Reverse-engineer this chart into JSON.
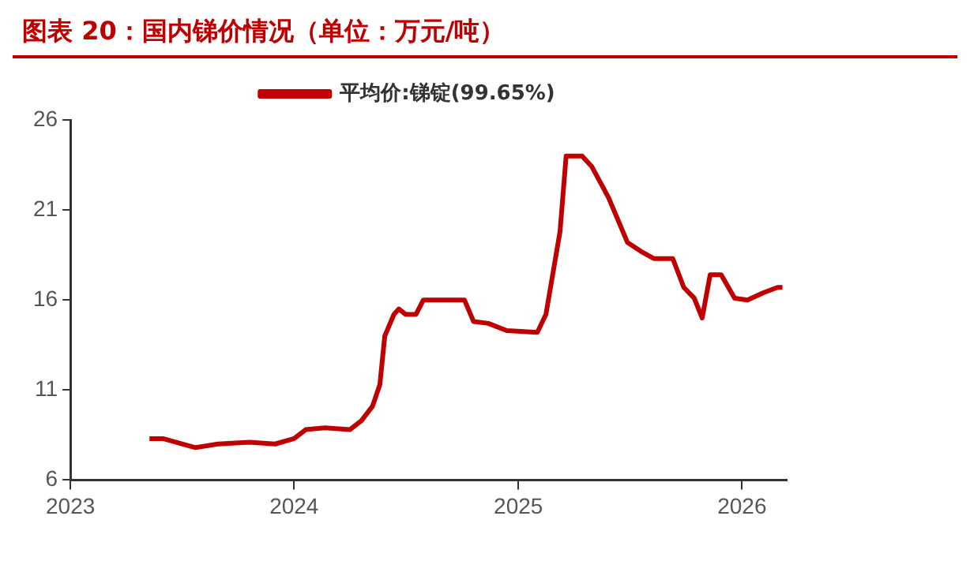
{
  "chart_data": {
    "type": "line",
    "title": "图表 20：国内锑价情况（单位：万元/吨）",
    "x": [
      "2023-05-10",
      "2023-06-01",
      "2023-07-24",
      "2023-08-30",
      "2023-10-20",
      "2023-12-01",
      "2024-01-01",
      "2024-01-20",
      "2024-02-20",
      "2024-04-01",
      "2024-04-20",
      "2024-05-08",
      "2024-05-20",
      "2024-05-28",
      "2024-06-12",
      "2024-06-20",
      "2024-07-01",
      "2024-07-18",
      "2024-07-30",
      "2024-09-15",
      "2024-10-05",
      "2024-10-20",
      "2024-11-13",
      "2024-12-13",
      "2025-02-01",
      "2025-02-15",
      "2025-03-10",
      "2025-03-20",
      "2025-04-15",
      "2025-05-01",
      "2025-05-28",
      "2025-06-28",
      "2025-07-20",
      "2025-08-10",
      "2025-09-10",
      "2025-09-28",
      "2025-10-15",
      "2025-10-28",
      "2025-11-10",
      "2025-11-28",
      "2025-12-20",
      "2026-01-10",
      "2026-02-05",
      "2026-02-28",
      "2026-03-08"
    ],
    "series": [
      {
        "name": "平均价:锑锭(99.65%)",
        "color": "#c00000",
        "values": [
          8.3,
          8.3,
          7.8,
          8.0,
          8.1,
          8.0,
          8.3,
          8.8,
          8.9,
          8.8,
          9.3,
          10.1,
          11.3,
          14.0,
          15.2,
          15.5,
          15.2,
          15.2,
          16.0,
          16.0,
          16.0,
          14.8,
          14.7,
          14.3,
          14.2,
          15.2,
          19.8,
          24.0,
          24.0,
          23.4,
          21.7,
          19.2,
          18.7,
          18.3,
          18.3,
          16.7,
          16.1,
          15.0,
          17.4,
          17.4,
          16.1,
          16.0,
          16.4,
          16.7,
          16.7
        ]
      }
    ],
    "xlim": [
      "2023-01-01",
      "2026-03-15"
    ],
    "xticks": [
      {
        "value": "2023-01-01",
        "label": "2023"
      },
      {
        "value": "2024-01-01",
        "label": "2024"
      },
      {
        "value": "2025-01-01",
        "label": "2025"
      },
      {
        "value": "2026-01-01",
        "label": "2026"
      }
    ],
    "ylim": [
      6,
      26
    ],
    "yticks": [
      6,
      11,
      16,
      21,
      26
    ],
    "grid": false,
    "legend": "top",
    "marker": "none",
    "line_style": "solid"
  }
}
